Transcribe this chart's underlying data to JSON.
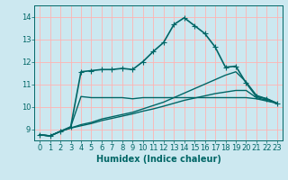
{
  "background_color": "#cce8f0",
  "grid_color": "#ffb3b3",
  "line_color": "#006666",
  "xlabel": "Humidex (Indice chaleur)",
  "xlim": [
    -0.5,
    23.5
  ],
  "ylim": [
    8.5,
    14.5
  ],
  "yticks": [
    9,
    10,
    11,
    12,
    13,
    14
  ],
  "xticks": [
    0,
    1,
    2,
    3,
    4,
    5,
    6,
    7,
    8,
    9,
    10,
    11,
    12,
    13,
    14,
    15,
    16,
    17,
    18,
    19,
    20,
    21,
    22,
    23
  ],
  "series": [
    {
      "x": [
        0,
        1,
        2,
        3,
        4,
        5,
        6,
        7,
        8,
        9,
        10,
        11,
        12,
        13,
        14,
        15,
        16,
        17,
        18,
        19,
        20,
        21,
        22,
        23
      ],
      "y": [
        8.75,
        8.7,
        8.9,
        9.1,
        11.55,
        11.6,
        11.65,
        11.65,
        11.7,
        11.65,
        12.0,
        12.45,
        12.85,
        13.65,
        13.95,
        13.6,
        13.25,
        12.65,
        11.75,
        11.8,
        11.05,
        10.45,
        10.35,
        10.15
      ],
      "marker": "+",
      "markersize": 4,
      "linewidth": 1.2,
      "linestyle": "-"
    },
    {
      "x": [
        0,
        1,
        2,
        3,
        4,
        5,
        6,
        7,
        8,
        9,
        10,
        11,
        12,
        13,
        14,
        15,
        16,
        17,
        18,
        19,
        20,
        21,
        22,
        23
      ],
      "y": [
        8.75,
        8.7,
        8.9,
        9.1,
        10.45,
        10.4,
        10.4,
        10.4,
        10.4,
        10.35,
        10.4,
        10.4,
        10.4,
        10.4,
        10.4,
        10.4,
        10.4,
        10.4,
        10.4,
        10.4,
        10.4,
        10.35,
        10.25,
        10.15
      ],
      "marker": null,
      "markersize": 0,
      "linewidth": 1.0,
      "linestyle": "-"
    },
    {
      "x": [
        0,
        1,
        2,
        3,
        4,
        5,
        6,
        7,
        8,
        9,
        10,
        11,
        12,
        13,
        14,
        15,
        16,
        17,
        18,
        19,
        20,
        21,
        22,
        23
      ],
      "y": [
        8.75,
        8.7,
        8.9,
        9.05,
        9.2,
        9.3,
        9.45,
        9.55,
        9.65,
        9.75,
        9.9,
        10.05,
        10.2,
        10.4,
        10.6,
        10.8,
        11.0,
        11.2,
        11.4,
        11.55,
        11.1,
        10.5,
        10.35,
        10.15
      ],
      "marker": null,
      "markersize": 0,
      "linewidth": 1.0,
      "linestyle": "-"
    },
    {
      "x": [
        0,
        1,
        2,
        3,
        4,
        5,
        6,
        7,
        8,
        9,
        10,
        11,
        12,
        13,
        14,
        15,
        16,
        17,
        18,
        19,
        20,
        21,
        22,
        23
      ],
      "y": [
        8.75,
        8.7,
        8.9,
        9.05,
        9.15,
        9.25,
        9.38,
        9.48,
        9.58,
        9.68,
        9.8,
        9.9,
        10.02,
        10.15,
        10.28,
        10.38,
        10.48,
        10.58,
        10.65,
        10.72,
        10.72,
        10.4,
        10.28,
        10.15
      ],
      "marker": null,
      "markersize": 0,
      "linewidth": 1.0,
      "linestyle": "-"
    }
  ]
}
